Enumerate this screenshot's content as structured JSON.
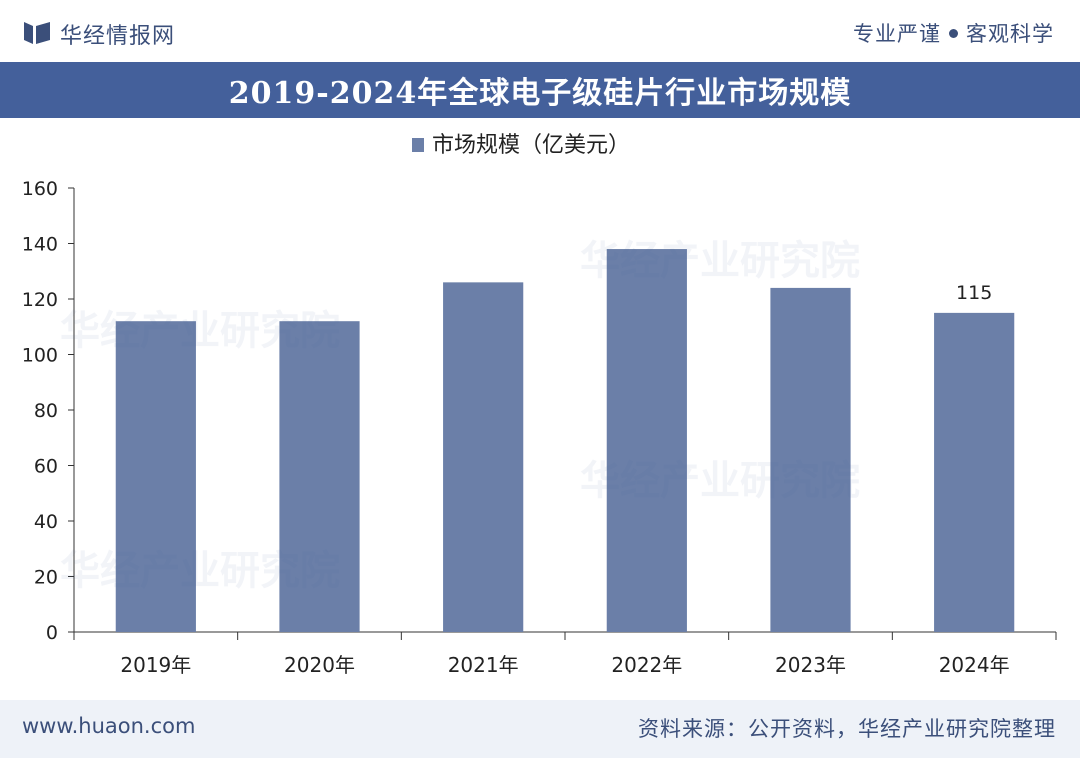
{
  "header": {
    "brand": "华经情报网",
    "slogan_left": "专业严谨",
    "slogan_right": "客观科学"
  },
  "title": "2019-2024年全球电子级硅片行业市场规模",
  "footer": {
    "site": "www.huaon.com",
    "source": "资料来源：公开资料，华经产业研究院整理"
  },
  "watermarks": [
    "华经产业研究院",
    "www.huaon.com"
  ],
  "colors": {
    "bar": "#6b7fa8",
    "title_band": "#44609b",
    "text": "#3b4f7a"
  },
  "chart_data": {
    "type": "bar",
    "categories": [
      "2019年",
      "2020年",
      "2021年",
      "2022年",
      "2023年",
      "2024年"
    ],
    "series": [
      {
        "name": "市场规模（亿美元）",
        "values": [
          112,
          112,
          126,
          138,
          124,
          115
        ]
      }
    ],
    "data_labels": [
      null,
      null,
      null,
      null,
      null,
      "115"
    ],
    "ylim": [
      0,
      160
    ],
    "yticks": [
      0,
      20,
      40,
      60,
      80,
      100,
      120,
      140,
      160
    ],
    "legend": "top-center",
    "grid": false
  }
}
